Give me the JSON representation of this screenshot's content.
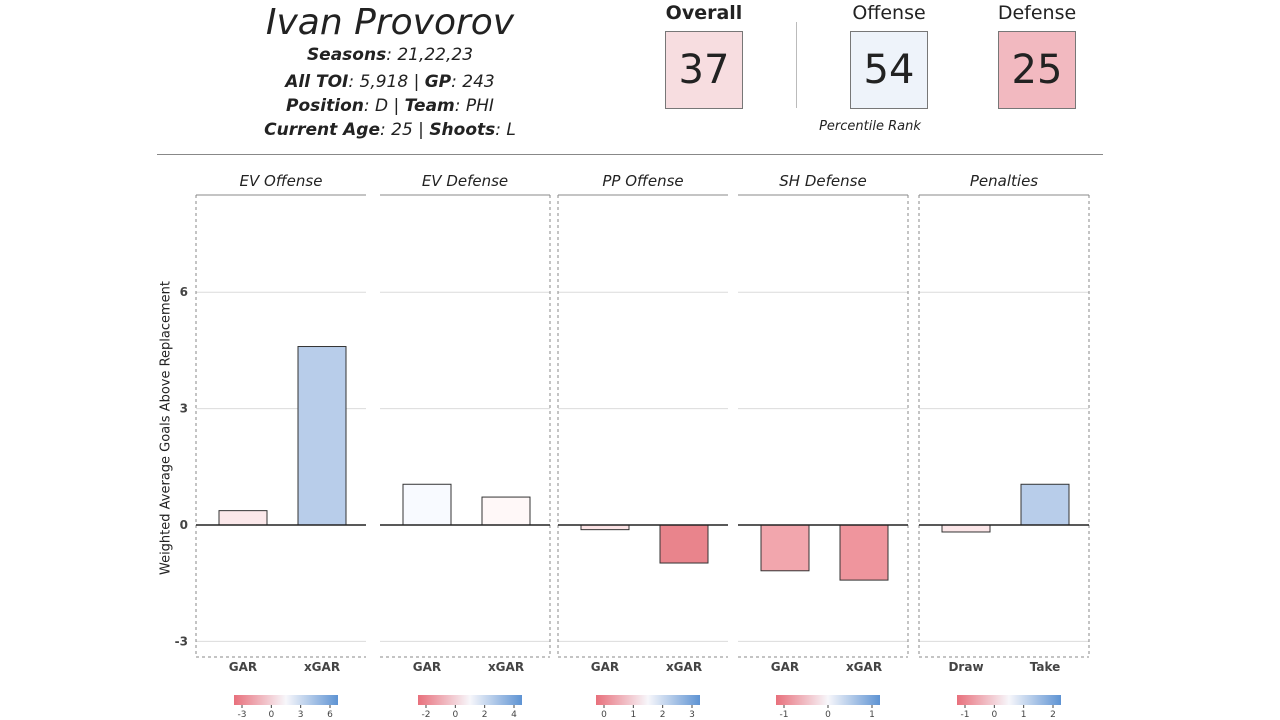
{
  "player": {
    "name": "Ivan Provorov",
    "seasons_label": "Seasons",
    "seasons": ": 21,22,23",
    "toi_label": "All TOI",
    "toi": ": 5,918 | ",
    "gp_label": "GP",
    "gp": ": 243",
    "position_label": "Position",
    "position": ": D | ",
    "team_label": "Team",
    "team": ": PHI",
    "age_label": "Current Age",
    "age": ": 25 | ",
    "shoots_label": "Shoots",
    "shoots": ": L"
  },
  "ranks": {
    "overall_label": "Overall",
    "overall": "37",
    "overall_color": "#f7dde0",
    "offense_label": "Offense",
    "offense": "54",
    "offense_color": "#eef3fa",
    "defense_label": "Defense",
    "defense": "25",
    "defense_color": "#f2b9c0",
    "note": "Percentile Rank"
  },
  "chart_data": {
    "type": "bar",
    "ylabel": "Weighted Average Goals Above Replacement",
    "ylim": [
      -3.4,
      8.5
    ],
    "yticks": [
      -3,
      0,
      3,
      6
    ],
    "grid": true,
    "panels": [
      {
        "title": "EV Offense",
        "categories": [
          "GAR",
          "xGAR"
        ],
        "values": [
          0.37,
          4.6
        ],
        "colors": [
          "#fbe8ea",
          "#b8cdea"
        ],
        "legend": {
          "ticks": [
            "-3",
            "0",
            "3",
            "6"
          ]
        }
      },
      {
        "title": "EV Defense",
        "categories": [
          "GAR",
          "xGAR"
        ],
        "values": [
          1.05,
          0.72
        ],
        "colors": [
          "#f8faff",
          "#fff8f8"
        ],
        "legend": {
          "ticks": [
            "-2",
            "0",
            "2",
            "4"
          ]
        }
      },
      {
        "title": "PP Offense",
        "categories": [
          "GAR",
          "xGAR"
        ],
        "values": [
          -0.12,
          -0.98
        ],
        "colors": [
          "#fbe3e5",
          "#e9848c"
        ],
        "legend": {
          "ticks": [
            "0",
            "1",
            "2",
            "3"
          ]
        }
      },
      {
        "title": "SH Defense",
        "categories": [
          "GAR",
          "xGAR"
        ],
        "values": [
          -1.18,
          -1.42
        ],
        "colors": [
          "#f2a6ad",
          "#ef959d"
        ],
        "legend": {
          "ticks": [
            "-1",
            "0",
            "1"
          ]
        }
      },
      {
        "title": "Penalties",
        "categories": [
          "Draw",
          "Take"
        ],
        "values": [
          -0.18,
          1.05
        ],
        "colors": [
          "#fbe6e8",
          "#b8cdea"
        ],
        "legend": {
          "ticks": [
            "-1",
            "0",
            "1",
            "2"
          ]
        }
      }
    ]
  }
}
